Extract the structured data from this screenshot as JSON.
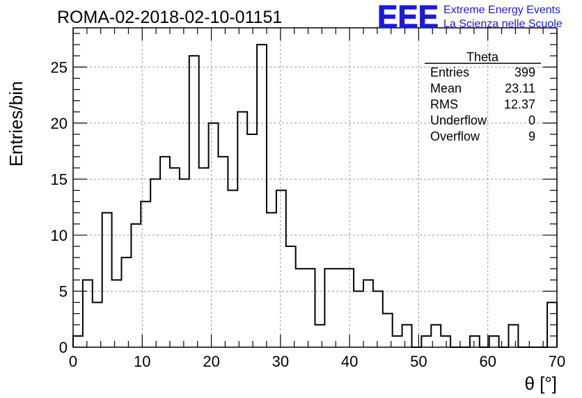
{
  "chart_data": {
    "type": "bar",
    "title": "ROMA-02-2018-02-10-01151",
    "xlabel": "θ [°]",
    "ylabel": "Entries/bin",
    "xlim": [
      0,
      70
    ],
    "ylim": [
      0,
      28.5
    ],
    "bin_width": 1.4,
    "grid": true,
    "x_ticks": [
      0,
      10,
      20,
      30,
      40,
      50,
      60,
      70
    ],
    "y_ticks": [
      0,
      5,
      10,
      15,
      20,
      25
    ],
    "values": [
      1,
      6,
      4,
      12,
      6,
      8,
      11,
      13,
      15,
      17,
      16,
      15,
      26,
      16,
      20,
      17,
      14,
      21,
      19,
      27,
      12,
      14,
      9,
      7,
      7,
      2,
      7,
      7,
      7,
      5,
      6,
      5,
      3,
      1,
      2,
      0,
      1,
      2,
      1,
      0,
      0,
      1,
      0,
      1,
      0,
      2,
      0,
      0,
      0,
      4
    ],
    "series_color": "#000000",
    "grid_color": "#999999"
  },
  "stats_box": {
    "title": "Theta",
    "rows": [
      {
        "label": "Entries",
        "value": "399"
      },
      {
        "label": "Mean",
        "value": "23.11"
      },
      {
        "label": "RMS",
        "value": "12.37"
      },
      {
        "label": "Underflow",
        "value": "0"
      },
      {
        "label": "Overflow",
        "value": "9"
      }
    ]
  },
  "logo": {
    "text": "EEE",
    "line1": "Extreme Energy Events",
    "line2": "La Scienza nelle Scuole",
    "color": "#1b1bd9"
  }
}
